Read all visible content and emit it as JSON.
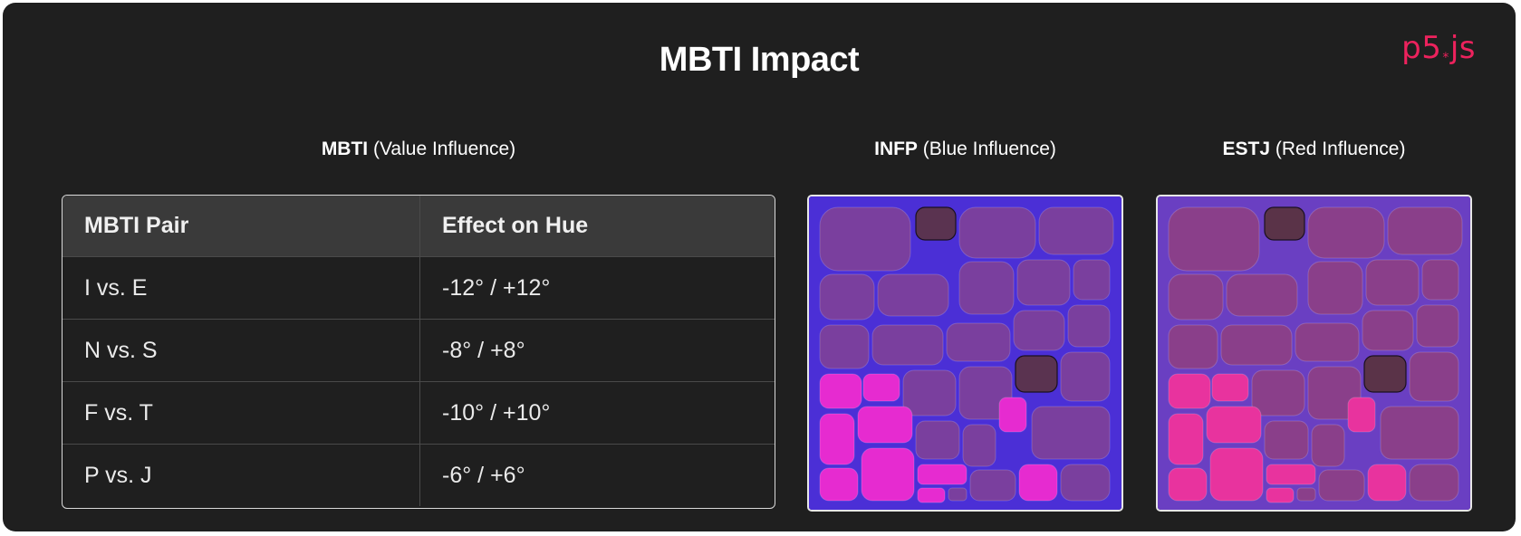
{
  "header": {
    "title": "MBTI Impact",
    "logo_text_a": "p5",
    "logo_star": "*",
    "logo_text_b": "js"
  },
  "table_section": {
    "caption_bold": "MBTI",
    "caption_rest": " (Value Influence)",
    "columns": [
      "MBTI Pair",
      "Effect on Hue"
    ],
    "rows": [
      [
        "I vs. E",
        "-12° / +12°"
      ],
      [
        "N vs. S",
        "-8° / +8°"
      ],
      [
        "F vs. T",
        "-10° / +10°"
      ],
      [
        "P vs. J",
        "-6° / +6°"
      ]
    ]
  },
  "infp_section": {
    "caption_bold": "INFP",
    "caption_rest": " (Blue Influence)",
    "background_color": "#4b2fd6",
    "cell_color": "#7a3f9e",
    "highlight_color": "#e62bd0",
    "dark_color": "#5a3350"
  },
  "estj_section": {
    "caption_bold": "ESTJ",
    "caption_rest": " (Red Influence)",
    "background_color": "#6a3fc2",
    "cell_color": "#8a3f8a",
    "highlight_color": "#e8339e",
    "dark_color": "#5a3348"
  }
}
